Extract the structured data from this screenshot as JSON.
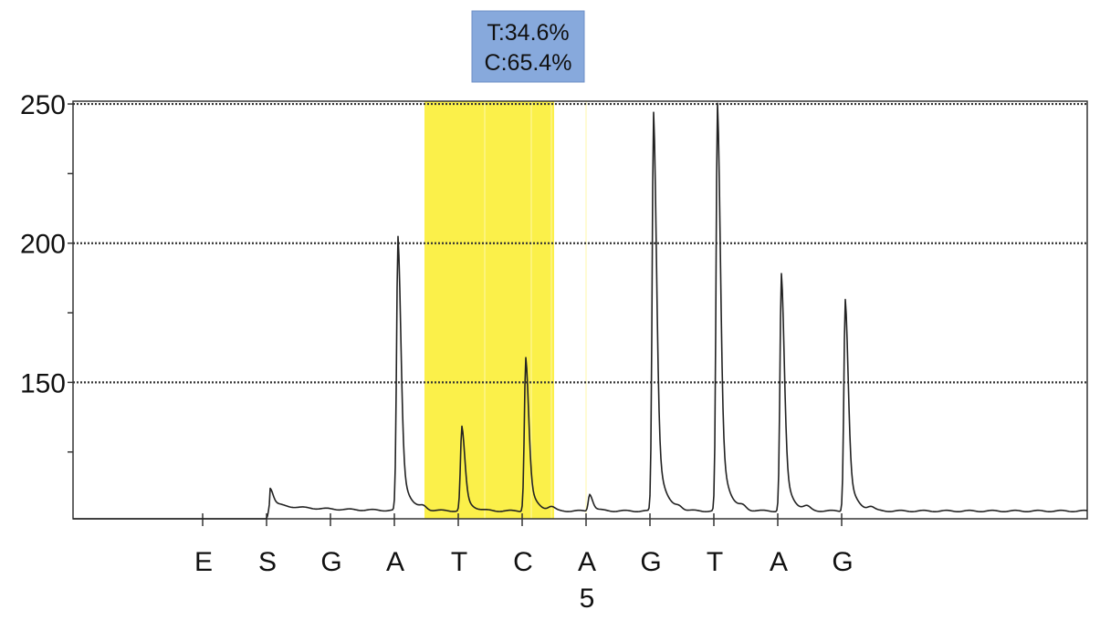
{
  "chart_data": {
    "type": "line",
    "title": "",
    "xlabel": "",
    "ylabel": "",
    "ylim": [
      101,
      251
    ],
    "yticks": [
      150,
      200,
      250
    ],
    "grid": true,
    "dispensation_order": [
      "E",
      "S",
      "G",
      "A",
      "T",
      "C",
      "A",
      "G",
      "T",
      "A",
      "G"
    ],
    "position_marker": {
      "label": "5"
    },
    "highlight": {
      "region": "T-C",
      "color": "#fbf04a",
      "readout": [
        "T:34.6%",
        "C:65.4%"
      ],
      "readout_color": "#87a9dc"
    },
    "baseline": 102,
    "series": [
      {
        "peaks": [
          {
            "base": "E",
            "height": 0
          },
          {
            "base": "S",
            "height": 110
          },
          {
            "base": "G",
            "height": 0
          },
          {
            "base": "A",
            "height": 202
          },
          {
            "base": "T",
            "height": 134
          },
          {
            "base": "C",
            "height": 159
          },
          {
            "base": "A",
            "height": 110
          },
          {
            "base": "G",
            "height": 247
          },
          {
            "base": "T",
            "height": 250
          },
          {
            "base": "A",
            "height": 189
          },
          {
            "base": "G",
            "height": 180
          }
        ]
      }
    ],
    "line_color": "#222222"
  }
}
